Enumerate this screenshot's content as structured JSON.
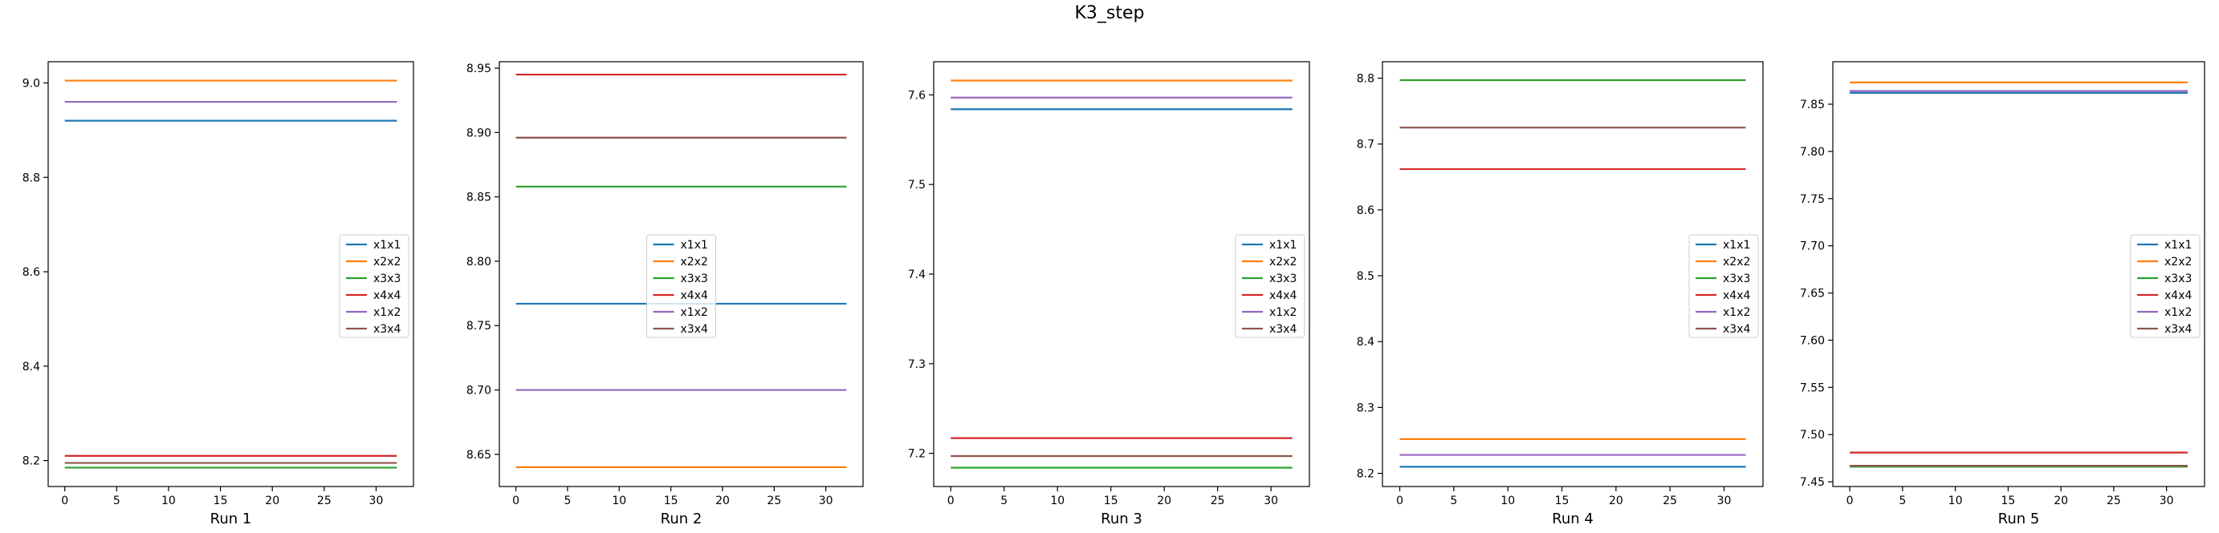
{
  "figure": {
    "title": "K3_step"
  },
  "chart_data": [
    {
      "type": "line",
      "title": "",
      "xlabel": "Run 1",
      "ylabel": "",
      "xlim": [
        -1.6,
        33.6
      ],
      "ylim": [
        8.145,
        9.045
      ],
      "xticks": [
        0,
        5,
        10,
        15,
        20,
        25,
        30
      ],
      "yticks": [
        8.2,
        8.4,
        8.6,
        8.8,
        9.0
      ],
      "ytick_labels": [
        "8.2",
        "8.4",
        "8.6",
        "8.8",
        "9.0"
      ],
      "grid": false,
      "legend": {
        "placement": "center-right"
      },
      "x": [
        0,
        32
      ],
      "series": [
        {
          "name": "x1x1",
          "color": "#1f77b4",
          "values": [
            8.92,
            8.92
          ]
        },
        {
          "name": "x2x2",
          "color": "#ff7f0e",
          "values": [
            9.005,
            9.005
          ]
        },
        {
          "name": "x3x3",
          "color": "#2ca02c",
          "values": [
            8.185,
            8.185
          ]
        },
        {
          "name": "x4x4",
          "color": "#d62728",
          "values": [
            8.21,
            8.21
          ]
        },
        {
          "name": "x1x2",
          "color": "#9467bd",
          "values": [
            8.96,
            8.96
          ]
        },
        {
          "name": "x3x4",
          "color": "#8c564b",
          "values": [
            8.195,
            8.195
          ]
        }
      ]
    },
    {
      "type": "line",
      "title": "",
      "xlabel": "Run 2",
      "ylabel": "",
      "xlim": [
        -1.6,
        33.6
      ],
      "ylim": [
        8.625,
        8.955
      ],
      "xticks": [
        0,
        5,
        10,
        15,
        20,
        25,
        30
      ],
      "yticks": [
        8.65,
        8.7,
        8.75,
        8.8,
        8.85,
        8.9,
        8.95
      ],
      "ytick_labels": [
        "8.65",
        "8.70",
        "8.75",
        "8.80",
        "8.85",
        "8.90",
        "8.95"
      ],
      "grid": false,
      "legend": {
        "placement": "center"
      },
      "x": [
        0,
        32
      ],
      "series": [
        {
          "name": "x1x1",
          "color": "#1f77b4",
          "values": [
            8.767,
            8.767
          ]
        },
        {
          "name": "x2x2",
          "color": "#ff7f0e",
          "values": [
            8.64,
            8.64
          ]
        },
        {
          "name": "x3x3",
          "color": "#2ca02c",
          "values": [
            8.858,
            8.858
          ]
        },
        {
          "name": "x4x4",
          "color": "#d62728",
          "values": [
            8.945,
            8.945
          ]
        },
        {
          "name": "x1x2",
          "color": "#9467bd",
          "values": [
            8.7,
            8.7
          ]
        },
        {
          "name": "x3x4",
          "color": "#8c564b",
          "values": [
            8.896,
            8.896
          ]
        }
      ]
    },
    {
      "type": "line",
      "title": "",
      "xlabel": "Run 3",
      "ylabel": "",
      "xlim": [
        -1.6,
        33.6
      ],
      "ylim": [
        7.163,
        7.637
      ],
      "xticks": [
        0,
        5,
        10,
        15,
        20,
        25,
        30
      ],
      "yticks": [
        7.2,
        7.3,
        7.4,
        7.5,
        7.6
      ],
      "ytick_labels": [
        "7.2",
        "7.3",
        "7.4",
        "7.5",
        "7.6"
      ],
      "grid": false,
      "legend": {
        "placement": "center-right"
      },
      "x": [
        0,
        32
      ],
      "series": [
        {
          "name": "x1x1",
          "color": "#1f77b4",
          "values": [
            7.584,
            7.584
          ]
        },
        {
          "name": "x2x2",
          "color": "#ff7f0e",
          "values": [
            7.616,
            7.616
          ]
        },
        {
          "name": "x3x3",
          "color": "#2ca02c",
          "values": [
            7.184,
            7.184
          ]
        },
        {
          "name": "x4x4",
          "color": "#d62728",
          "values": [
            7.217,
            7.217
          ]
        },
        {
          "name": "x1x2",
          "color": "#9467bd",
          "values": [
            7.597,
            7.597
          ]
        },
        {
          "name": "x3x4",
          "color": "#8c564b",
          "values": [
            7.197,
            7.197
          ]
        }
      ]
    },
    {
      "type": "line",
      "title": "",
      "xlabel": "Run 4",
      "ylabel": "",
      "xlim": [
        -1.6,
        33.6
      ],
      "ylim": [
        8.18,
        8.825
      ],
      "xticks": [
        0,
        5,
        10,
        15,
        20,
        25,
        30
      ],
      "yticks": [
        8.2,
        8.3,
        8.4,
        8.5,
        8.6,
        8.7,
        8.8
      ],
      "ytick_labels": [
        "8.2",
        "8.3",
        "8.4",
        "8.5",
        "8.6",
        "8.7",
        "8.8"
      ],
      "grid": false,
      "legend": {
        "placement": "center-right"
      },
      "x": [
        0,
        32
      ],
      "series": [
        {
          "name": "x1x1",
          "color": "#1f77b4",
          "values": [
            8.21,
            8.21
          ]
        },
        {
          "name": "x2x2",
          "color": "#ff7f0e",
          "values": [
            8.252,
            8.252
          ]
        },
        {
          "name": "x3x3",
          "color": "#2ca02c",
          "values": [
            8.797,
            8.797
          ]
        },
        {
          "name": "x4x4",
          "color": "#d62728",
          "values": [
            8.662,
            8.662
          ]
        },
        {
          "name": "x1x2",
          "color": "#9467bd",
          "values": [
            8.228,
            8.228
          ]
        },
        {
          "name": "x3x4",
          "color": "#8c564b",
          "values": [
            8.725,
            8.725
          ]
        }
      ]
    },
    {
      "type": "line",
      "title": "",
      "xlabel": "Run 5",
      "ylabel": "",
      "xlim": [
        -1.6,
        33.6
      ],
      "ylim": [
        7.445,
        7.895
      ],
      "xticks": [
        0,
        5,
        10,
        15,
        20,
        25,
        30
      ],
      "yticks": [
        7.45,
        7.5,
        7.55,
        7.6,
        7.65,
        7.7,
        7.75,
        7.8,
        7.85
      ],
      "ytick_labels": [
        "7.45",
        "7.50",
        "7.55",
        "7.60",
        "7.65",
        "7.70",
        "7.75",
        "7.80",
        "7.85"
      ],
      "grid": false,
      "legend": {
        "placement": "center-right"
      },
      "x": [
        0,
        32
      ],
      "series": [
        {
          "name": "x1x1",
          "color": "#1f77b4",
          "values": [
            7.862,
            7.862
          ]
        },
        {
          "name": "x2x2",
          "color": "#ff7f0e",
          "values": [
            7.873,
            7.873
          ]
        },
        {
          "name": "x3x3",
          "color": "#2ca02c",
          "values": [
            7.466,
            7.466
          ]
        },
        {
          "name": "x4x4",
          "color": "#d62728",
          "values": [
            7.481,
            7.481
          ]
        },
        {
          "name": "x1x2",
          "color": "#9467bd",
          "values": [
            7.864,
            7.864
          ]
        },
        {
          "name": "x3x4",
          "color": "#8c564b",
          "values": [
            7.467,
            7.467
          ]
        }
      ]
    }
  ]
}
